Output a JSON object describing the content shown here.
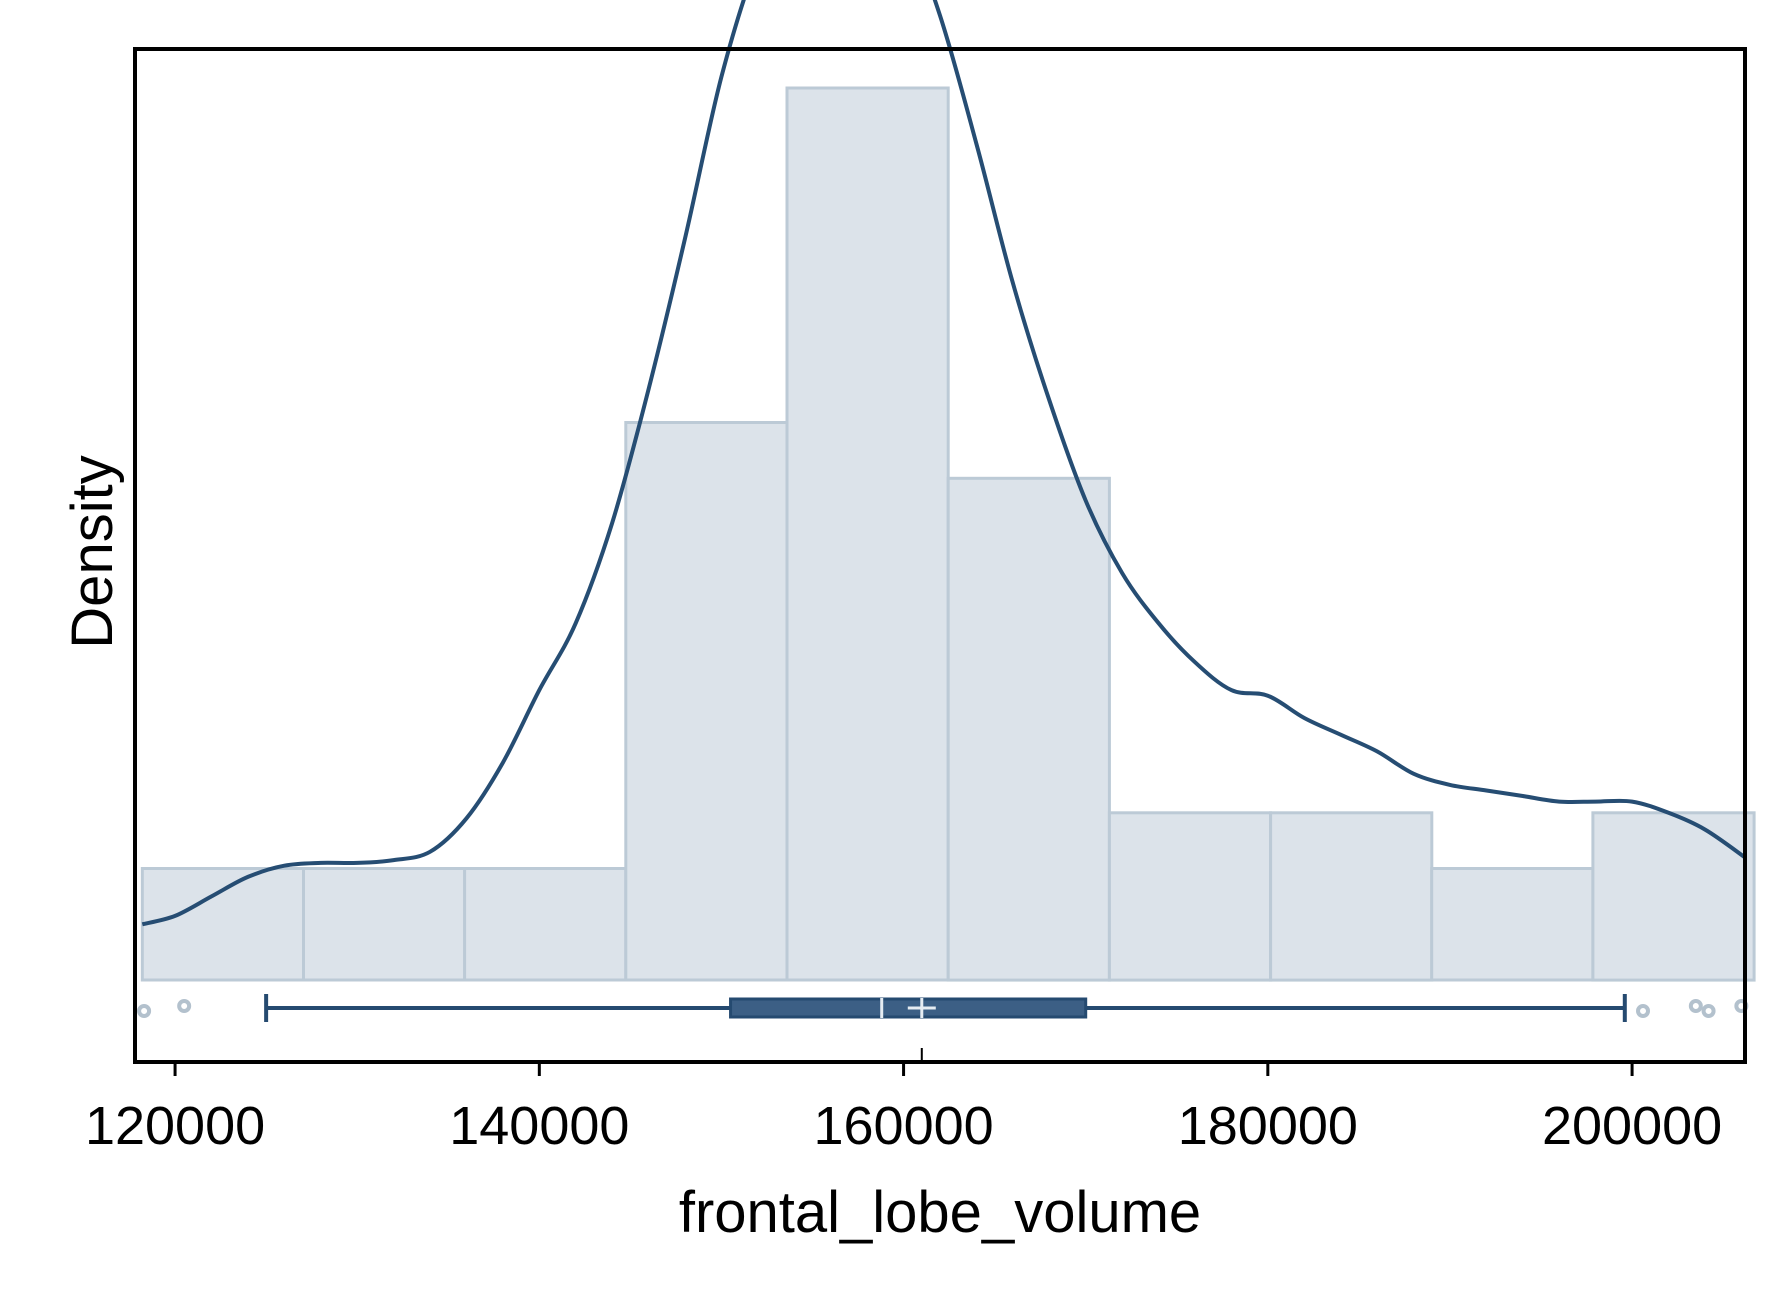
{
  "chart_data": {
    "type": "histogram",
    "title": "",
    "xlabel": "frontal_lobe_volume",
    "ylabel": "Density",
    "xlim": [
      117800,
      206200
    ],
    "x_ticks": [
      120000,
      140000,
      160000,
      180000,
      200000
    ],
    "x_tick_labels": [
      "120000",
      "140000",
      "160000",
      "180000",
      "200000"
    ],
    "y_tick_labels": [],
    "grid": false,
    "legend": "none",
    "bins": [
      {
        "x0": 118200,
        "x1": 127050,
        "count": 2
      },
      {
        "x0": 127050,
        "x1": 135900,
        "count": 2
      },
      {
        "x0": 135900,
        "x1": 144750,
        "count": 2
      },
      {
        "x0": 144750,
        "x1": 153600,
        "count": 10
      },
      {
        "x0": 153600,
        "x1": 162450,
        "count": 16
      },
      {
        "x0": 162450,
        "x1": 171300,
        "count": 9
      },
      {
        "x0": 171300,
        "x1": 180150,
        "count": 3
      },
      {
        "x0": 180150,
        "x1": 189000,
        "count": 3
      },
      {
        "x0": 189000,
        "x1": 197850,
        "count": 2
      },
      {
        "x0": 197850,
        "x1": 206700,
        "count": 3
      }
    ],
    "density_curve": [
      [
        118200,
        1.0
      ],
      [
        120000,
        1.15
      ],
      [
        122000,
        1.5
      ],
      [
        124000,
        1.85
      ],
      [
        126000,
        2.05
      ],
      [
        128000,
        2.1
      ],
      [
        130000,
        2.1
      ],
      [
        132000,
        2.15
      ],
      [
        134000,
        2.3
      ],
      [
        136000,
        2.9
      ],
      [
        138000,
        3.9
      ],
      [
        140000,
        5.2
      ],
      [
        142000,
        6.4
      ],
      [
        144000,
        8.2
      ],
      [
        146000,
        10.6
      ],
      [
        148000,
        13.3
      ],
      [
        150000,
        16.2
      ],
      [
        152000,
        18.3
      ],
      [
        154000,
        19.6
      ],
      [
        156000,
        20.3
      ],
      [
        158000,
        20.0
      ],
      [
        160000,
        19.0
      ],
      [
        162000,
        17.3
      ],
      [
        164000,
        15.0
      ],
      [
        166000,
        12.5
      ],
      [
        168000,
        10.4
      ],
      [
        170000,
        8.6
      ],
      [
        172000,
        7.3
      ],
      [
        174000,
        6.4
      ],
      [
        176000,
        5.7
      ],
      [
        178000,
        5.2
      ],
      [
        180000,
        5.1
      ],
      [
        182000,
        4.7
      ],
      [
        184000,
        4.4
      ],
      [
        186000,
        4.1
      ],
      [
        188000,
        3.7
      ],
      [
        190000,
        3.5
      ],
      [
        192000,
        3.4
      ],
      [
        194000,
        3.3
      ],
      [
        196000,
        3.2
      ],
      [
        198000,
        3.2
      ],
      [
        200000,
        3.2
      ],
      [
        202000,
        3.0
      ],
      [
        204000,
        2.7
      ],
      [
        206200,
        2.2
      ]
    ],
    "boxplot": {
      "lower_whisker": 125000,
      "q1": 150500,
      "median": 158800,
      "mean": 161000,
      "q3": 170000,
      "upper_whisker": 199600,
      "outliers": [
        118300,
        120500,
        200600,
        203500,
        204200,
        206000
      ]
    },
    "colors": {
      "bar_fill": "#dce3ea",
      "bar_stroke": "#bccad6",
      "curve": "#264d73",
      "box_fill": "#3c5f85",
      "box_stroke": "#254a70",
      "marker_light": "#e6ecf2",
      "outlier": "#b3c1cd",
      "frame": "#000000"
    }
  }
}
